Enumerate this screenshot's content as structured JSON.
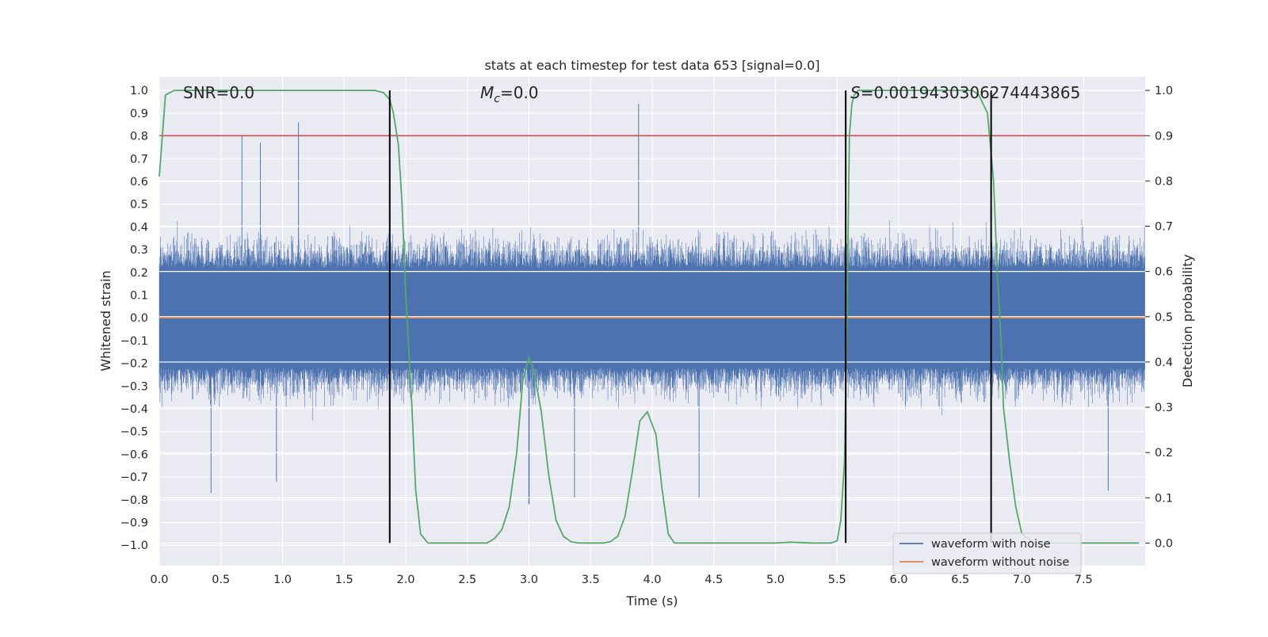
{
  "chart_data": {
    "type": "line",
    "title": "stats at each timestep for test data 653 [signal=0.0]",
    "xlabel": "Time (s)",
    "ylabel": "Whitened strain",
    "y2label": "Detection probability",
    "xlim": [
      0.0,
      8.0
    ],
    "ylim": [
      -1.09,
      1.06
    ],
    "y2lim": [
      -0.05,
      1.03
    ],
    "xticks": [
      "0.0",
      "0.5",
      "1.0",
      "1.5",
      "2.0",
      "2.5",
      "3.0",
      "3.5",
      "4.0",
      "4.5",
      "5.0",
      "5.5",
      "6.0",
      "6.5",
      "7.0",
      "7.5"
    ],
    "yticks": [
      "−1.0",
      "−0.9",
      "−0.8",
      "−0.7",
      "−0.6",
      "−0.5",
      "−0.4",
      "−0.3",
      "−0.2",
      "−0.1",
      "0.0",
      "0.1",
      "0.2",
      "0.3",
      "0.4",
      "0.5",
      "0.6",
      "0.7",
      "0.8",
      "0.9",
      "1.0"
    ],
    "y2ticks": [
      "0.0",
      "0.1",
      "0.2",
      "0.3",
      "0.4",
      "0.5",
      "0.6",
      "0.7",
      "0.8",
      "0.9",
      "1.0"
    ],
    "grid": true,
    "annotations": {
      "snr_label": "SNR=0.0",
      "mc_symbol": "M",
      "mc_sub": "c",
      "mc_value": "=0.0",
      "s_symbol": "S",
      "s_value": "=0.001943030627444386​5"
    },
    "series": [
      {
        "name": "waveform with noise",
        "color": "#4c72b0",
        "description_range": [
          -0.83,
          0.94
        ],
        "notable_peaks": [
          {
            "x": 0.42,
            "y": -0.77
          },
          {
            "x": 0.67,
            "y": 0.8
          },
          {
            "x": 0.82,
            "y": 0.77
          },
          {
            "x": 0.95,
            "y": -0.72
          },
          {
            "x": 1.13,
            "y": 0.86
          },
          {
            "x": 3.0,
            "y": -0.82
          },
          {
            "x": 3.37,
            "y": -0.79
          },
          {
            "x": 3.89,
            "y": 0.94
          },
          {
            "x": 4.38,
            "y": -0.79
          },
          {
            "x": 7.7,
            "y": -0.76
          }
        ]
      },
      {
        "name": "waveform without noise",
        "color": "#dd8452",
        "x": [
          0.0,
          8.0
        ],
        "y": [
          0.0,
          0.0
        ]
      },
      {
        "color": "#55a868",
        "axis": "right",
        "x": [
          0.0,
          0.05,
          0.12,
          0.2,
          0.4,
          0.8,
          1.2,
          1.6,
          1.75,
          1.82,
          1.87,
          1.9,
          1.94,
          1.97,
          2.0,
          2.05,
          2.08,
          2.12,
          2.18,
          2.25,
          2.35,
          2.5,
          2.6,
          2.66,
          2.72,
          2.78,
          2.84,
          2.9,
          2.95,
          3.0,
          3.04,
          3.1,
          3.16,
          3.22,
          3.28,
          3.34,
          3.4,
          3.5,
          3.6,
          3.66,
          3.72,
          3.78,
          3.84,
          3.9,
          3.96,
          4.03,
          4.08,
          4.13,
          4.18,
          4.24,
          4.3,
          4.4,
          4.6,
          4.8,
          5.0,
          5.12,
          5.3,
          5.45,
          5.5,
          5.53,
          5.56,
          5.58,
          5.6,
          5.62,
          5.64,
          5.67,
          5.72,
          5.8,
          6.0,
          6.3,
          6.6,
          6.65,
          6.72,
          6.77,
          6.8,
          6.83,
          6.85,
          6.9,
          6.95,
          7.0,
          7.1,
          7.3,
          7.6,
          7.95
        ],
        "y": [
          0.81,
          0.99,
          1.0,
          1.0,
          1.0,
          1.0,
          1.0,
          1.0,
          1.0,
          0.995,
          0.98,
          0.95,
          0.88,
          0.75,
          0.55,
          0.3,
          0.12,
          0.02,
          0.0,
          0.0,
          0.0,
          0.0,
          0.0,
          0.0,
          0.01,
          0.03,
          0.08,
          0.2,
          0.36,
          0.41,
          0.38,
          0.29,
          0.15,
          0.05,
          0.015,
          0.003,
          0.0,
          0.0,
          0.0,
          0.003,
          0.015,
          0.06,
          0.16,
          0.27,
          0.29,
          0.24,
          0.12,
          0.02,
          0.0,
          0.0,
          0.0,
          0.0,
          0.0,
          0.0,
          0.0,
          0.002,
          0.0,
          0.0,
          0.005,
          0.05,
          0.18,
          0.5,
          0.9,
          0.97,
          0.99,
          1.0,
          1.0,
          1.0,
          1.0,
          1.0,
          1.0,
          0.99,
          0.95,
          0.8,
          0.6,
          0.45,
          0.3,
          0.18,
          0.08,
          0.02,
          0.0,
          0.0,
          0.0,
          0.0
        ]
      }
    ],
    "hlines_right": [
      {
        "y": 0.9,
        "color": "#c44e52"
      }
    ],
    "vlines": [
      {
        "x": 1.87,
        "color": "#000000"
      },
      {
        "x": 5.57,
        "color": "#000000"
      },
      {
        "x": 6.75,
        "color": "#000000"
      }
    ],
    "legend": {
      "placement": "lower-right",
      "entries": [
        {
          "label": "waveform with noise",
          "color": "#4c72b0"
        },
        {
          "label": "waveform without noise",
          "color": "#dd8452"
        }
      ]
    },
    "background_color": "#eaeaf2"
  }
}
